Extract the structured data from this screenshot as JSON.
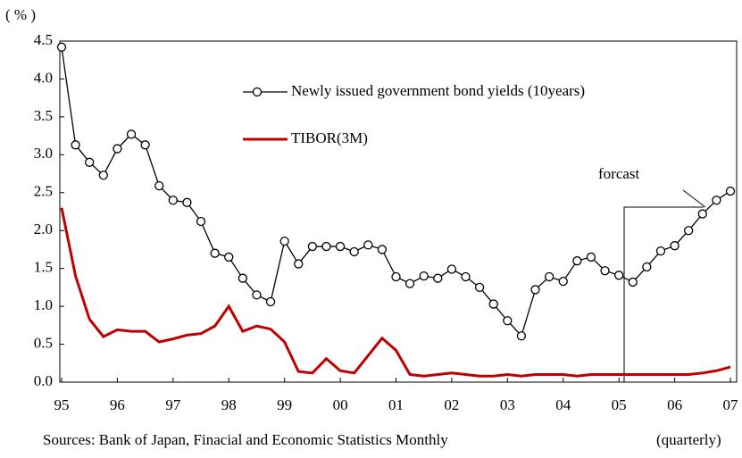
{
  "chart_data": {
    "type": "line",
    "y_label": "( % )",
    "categories": [
      "95",
      null,
      null,
      null,
      "96",
      null,
      null,
      null,
      "97",
      null,
      null,
      null,
      "98",
      null,
      null,
      null,
      "99",
      null,
      null,
      null,
      "00",
      null,
      null,
      null,
      "01",
      null,
      null,
      null,
      "02",
      null,
      null,
      null,
      "03",
      null,
      null,
      null,
      "04",
      null,
      null,
      null,
      "05",
      null,
      null,
      null,
      "06",
      null,
      null,
      null,
      "07"
    ],
    "series": [
      {
        "name": "Newly issued government bond yields (10years)",
        "color": "#000000",
        "marker": "circle",
        "values": [
          4.42,
          3.13,
          2.9,
          2.73,
          3.08,
          3.27,
          3.13,
          2.59,
          2.4,
          2.37,
          2.12,
          1.7,
          1.65,
          1.37,
          1.15,
          1.06,
          1.86,
          1.56,
          1.79,
          1.79,
          1.79,
          1.72,
          1.81,
          1.75,
          1.39,
          1.3,
          1.4,
          1.37,
          1.49,
          1.39,
          1.25,
          1.03,
          0.81,
          0.61,
          1.22,
          1.39,
          1.33,
          1.6,
          1.65,
          1.47,
          1.41,
          1.32,
          1.52,
          1.73,
          1.8,
          2.0,
          2.22,
          2.4,
          2.52
        ]
      },
      {
        "name": "TIBOR(3M)",
        "color": "#c00000",
        "values": [
          2.3,
          1.4,
          0.83,
          0.6,
          0.69,
          0.67,
          0.67,
          0.53,
          0.57,
          0.62,
          0.64,
          0.74,
          1.0,
          0.67,
          0.74,
          0.7,
          0.53,
          0.14,
          0.12,
          0.31,
          0.15,
          0.12,
          0.35,
          0.58,
          0.42,
          0.1,
          0.08,
          0.1,
          0.12,
          0.1,
          0.08,
          0.08,
          0.1,
          0.08,
          0.1,
          0.1,
          0.1,
          0.08,
          0.1,
          0.1,
          0.1,
          0.1,
          0.1,
          0.1,
          0.1,
          0.1,
          0.12,
          0.15,
          0.2
        ]
      }
    ],
    "ylim": [
      0,
      4.5
    ],
    "yticks": [
      {
        "value": 0,
        "label": "0.0"
      },
      0.5,
      {
        "value": 1,
        "label": "1.0"
      },
      1.5,
      {
        "value": 2,
        "label": "2.0"
      },
      2.5,
      {
        "value": 3,
        "label": "3.0"
      },
      3.5,
      {
        "value": 4,
        "label": "4.0"
      },
      4.5
    ],
    "annotation": "forcast",
    "source": "Sources: Bank of Japan, Finacial and Economic Statistics Monthly",
    "frequency_note": "(quarterly)"
  }
}
